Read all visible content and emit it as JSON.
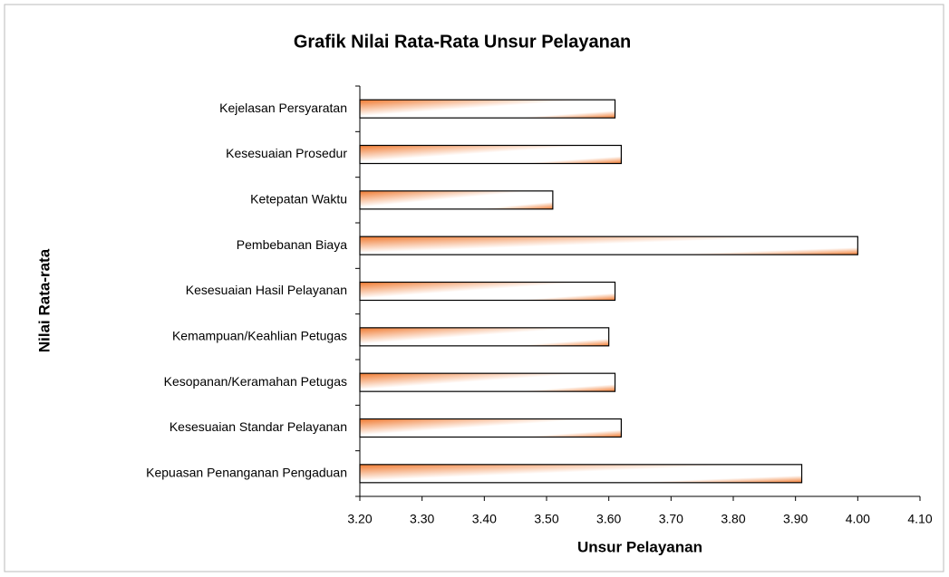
{
  "chart_data": {
    "type": "hbar",
    "title": "Grafik Nilai Rata-Rata Unsur Pelayanan",
    "x_label": "Unsur Pelayanan",
    "y_label": "Nilai Rata-rata",
    "categories": [
      "Kejelasan Persyaratan",
      "Kesesuaian Prosedur",
      "Ketepatan Waktu",
      "Pembebanan Biaya",
      "Kesesuaian Hasil Pelayanan",
      "Kemampuan/Keahlian Petugas",
      "Kesopanan/Keramahan Petugas",
      "Kesesuaian Standar Pelayanan",
      "Kepuasan Penanganan Pengaduan"
    ],
    "values": [
      3.61,
      3.62,
      3.51,
      4.0,
      3.61,
      3.6,
      3.61,
      3.62,
      3.91
    ],
    "color": "#f07a30",
    "xlim": [
      3.2,
      4.1
    ],
    "xticks": [
      {
        "value": 3.2,
        "label": "3.20"
      },
      {
        "value": 3.3,
        "label": "3.30"
      },
      {
        "value": 3.4,
        "label": "3.40"
      },
      {
        "value": 3.5,
        "label": "3.50"
      },
      {
        "value": 3.6,
        "label": "3.60"
      },
      {
        "value": 3.7,
        "label": "3.70"
      },
      {
        "value": 3.8,
        "label": "3.80"
      },
      {
        "value": 3.9,
        "label": "3.90"
      },
      {
        "value": 4.0,
        "label": "4.00"
      },
      {
        "value": 4.1,
        "label": "4.10"
      }
    ]
  }
}
